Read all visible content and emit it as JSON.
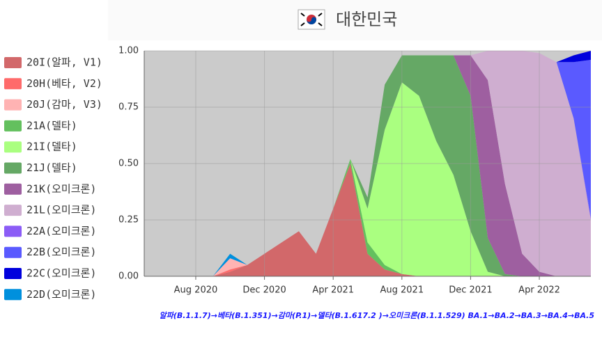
{
  "chart_data": {
    "type": "stacked_area",
    "title": "대한민국",
    "caption": "알파(B.1.1.7)→베타(B.1.351)→감마(P.1)→델타(B.1.617.2 )→오미크론(B.1.1.529) BA.1→BA.2→BA.3→BA.4→BA.5",
    "x": [
      "2020-05",
      "2020-06",
      "2020-07",
      "2020-08",
      "2020-09",
      "2020-10",
      "2020-11",
      "2020-12",
      "2021-01",
      "2021-02",
      "2021-03",
      "2021-04",
      "2021-05",
      "2021-06",
      "2021-07",
      "2021-08",
      "2021-09",
      "2021-10",
      "2021-11",
      "2021-12",
      "2022-01",
      "2022-02",
      "2022-03",
      "2022-04",
      "2022-05",
      "2022-06",
      "2022-07"
    ],
    "xlim": [
      "2020-05",
      "2022-07"
    ],
    "xticks": [
      {
        "value": "2020-08",
        "label": "Aug 2020"
      },
      {
        "value": "2020-12",
        "label": "Dec 2020"
      },
      {
        "value": "2021-04",
        "label": "Apr 2021"
      },
      {
        "value": "2021-08",
        "label": "Aug 2021"
      },
      {
        "value": "2021-12",
        "label": "Dec 2021"
      },
      {
        "value": "2022-04",
        "label": "Apr 2022"
      }
    ],
    "ylim": [
      0,
      1
    ],
    "yticks": [
      {
        "value": 0,
        "label": "0.00"
      },
      {
        "value": 0.25,
        "label": "0.25"
      },
      {
        "value": 0.5,
        "label": "0.50"
      },
      {
        "value": 0.75,
        "label": "0.75"
      },
      {
        "value": 1,
        "label": "1.00"
      }
    ],
    "grid": true,
    "background": "#cbcbcb",
    "series": [
      {
        "name": "20I(알파, V1)",
        "color": "#d2686a",
        "values": [
          0,
          0,
          0,
          0,
          0,
          0.02,
          0.05,
          0.1,
          0.15,
          0.2,
          0.1,
          0.3,
          0.5,
          0.1,
          0.03,
          0.01,
          0,
          0,
          0,
          0,
          0,
          0,
          0,
          0,
          0,
          0,
          0
        ]
      },
      {
        "name": "20H(베타, V2)",
        "color": "#ff6b6b",
        "values": [
          0,
          0,
          0,
          0,
          0,
          0.01,
          0,
          0,
          0,
          0,
          0,
          0,
          0,
          0,
          0,
          0,
          0,
          0,
          0,
          0,
          0,
          0,
          0,
          0,
          0,
          0,
          0
        ]
      },
      {
        "name": "20J(감마, V3)",
        "color": "#ffb3b3",
        "values": [
          0,
          0,
          0,
          0,
          0,
          0.05,
          0,
          0,
          0,
          0,
          0,
          0,
          0,
          0,
          0,
          0,
          0,
          0,
          0,
          0,
          0,
          0,
          0,
          0,
          0,
          0,
          0
        ]
      },
      {
        "name": "21A(델타)",
        "color": "#63c05e",
        "values": [
          0,
          0,
          0,
          0,
          0,
          0,
          0,
          0,
          0,
          0,
          0,
          0,
          0.02,
          0.05,
          0.02,
          0,
          0,
          0,
          0,
          0,
          0,
          0,
          0,
          0,
          0,
          0,
          0
        ]
      },
      {
        "name": "21I(델타)",
        "color": "#aaff80",
        "values": [
          0,
          0,
          0,
          0,
          0,
          0,
          0,
          0,
          0,
          0,
          0,
          0,
          0,
          0.15,
          0.6,
          0.85,
          0.8,
          0.6,
          0.45,
          0.2,
          0.02,
          0,
          0,
          0,
          0,
          0,
          0
        ]
      },
      {
        "name": "21J(델타)",
        "color": "#65a865",
        "values": [
          0,
          0,
          0,
          0,
          0,
          0,
          0,
          0,
          0,
          0,
          0,
          0,
          0,
          0.05,
          0.2,
          0.12,
          0.18,
          0.38,
          0.53,
          0.6,
          0.15,
          0.01,
          0,
          0,
          0,
          0,
          0
        ]
      },
      {
        "name": "21K(오미크론)",
        "color": "#9e5fa0",
        "values": [
          0,
          0,
          0,
          0,
          0,
          0,
          0,
          0,
          0,
          0,
          0,
          0,
          0,
          0,
          0,
          0,
          0,
          0,
          0,
          0.18,
          0.7,
          0.4,
          0.1,
          0.02,
          0,
          0,
          0
        ]
      },
      {
        "name": "21L(오미크론)",
        "color": "#cfaed0",
        "values": [
          0,
          0,
          0,
          0,
          0,
          0,
          0,
          0,
          0,
          0,
          0,
          0,
          0,
          0,
          0,
          0,
          0,
          0,
          0,
          0,
          0.13,
          0.59,
          0.9,
          0.97,
          0.95,
          0.7,
          0.25
        ]
      },
      {
        "name": "22A(오미크론)",
        "color": "#8b5cf6",
        "values": [
          0,
          0,
          0,
          0,
          0,
          0,
          0,
          0,
          0,
          0,
          0,
          0,
          0,
          0,
          0,
          0,
          0,
          0,
          0,
          0,
          0,
          0,
          0,
          0,
          0,
          0,
          0.01
        ]
      },
      {
        "name": "22B(오미크론)",
        "color": "#5a5aff",
        "values": [
          0,
          0,
          0,
          0,
          0,
          0,
          0,
          0,
          0,
          0,
          0,
          0,
          0,
          0,
          0,
          0,
          0,
          0,
          0,
          0,
          0,
          0,
          0,
          0,
          0,
          0.25,
          0.7
        ]
      },
      {
        "name": "22C(오미크론)",
        "color": "#0000dd",
        "values": [
          0,
          0,
          0,
          0,
          0,
          0,
          0,
          0,
          0,
          0,
          0,
          0,
          0,
          0,
          0,
          0,
          0,
          0,
          0,
          0,
          0,
          0,
          0,
          0,
          0,
          0.03,
          0.04
        ]
      },
      {
        "name": "22D(오미크론)",
        "color": "#0090dd",
        "values": [
          0,
          0,
          0,
          0,
          0,
          0.02,
          0,
          0,
          0,
          0,
          0,
          0,
          0,
          0,
          0,
          0,
          0,
          0,
          0,
          0,
          0,
          0,
          0,
          0,
          0,
          0,
          0
        ]
      }
    ]
  }
}
